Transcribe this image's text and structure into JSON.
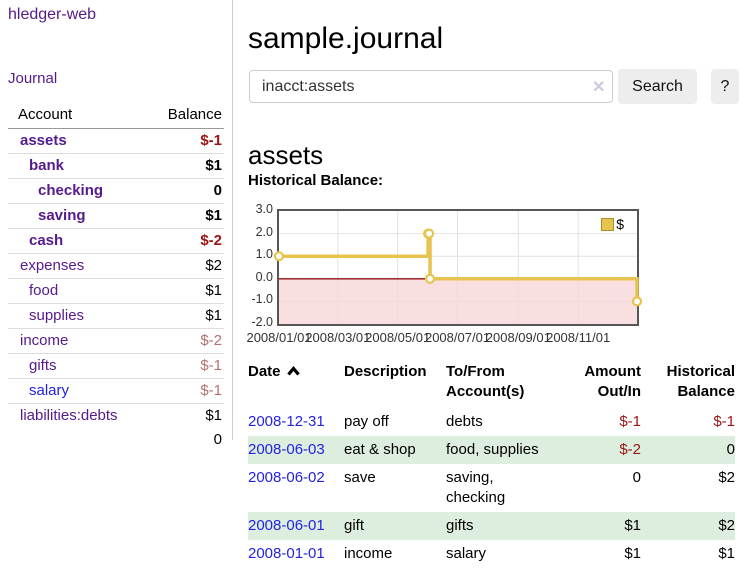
{
  "app": {
    "brand": "hledger-web"
  },
  "sidebar": {
    "journal_link": "Journal",
    "accounts": {
      "col_account": "Account",
      "col_balance": "Balance",
      "rows": [
        {
          "account": "assets",
          "balance": "$-1",
          "level": 0,
          "match": true,
          "link_tone": "visited",
          "balance_tone": "neg"
        },
        {
          "account": "bank",
          "balance": "$1",
          "level": 1,
          "match": true,
          "link_tone": "visited",
          "balance_tone": "pos"
        },
        {
          "account": "checking",
          "balance": "0",
          "level": 2,
          "match": true,
          "link_tone": "visited",
          "balance_tone": "pos"
        },
        {
          "account": "saving",
          "balance": "$1",
          "level": 2,
          "match": true,
          "link_tone": "visited",
          "balance_tone": "pos"
        },
        {
          "account": "cash",
          "balance": "$-2",
          "level": 1,
          "match": true,
          "link_tone": "visited",
          "balance_tone": "neg"
        },
        {
          "account": "expenses",
          "balance": "$2",
          "level": 0,
          "match": false,
          "link_tone": "visited",
          "balance_tone": "pos"
        },
        {
          "account": "food",
          "balance": "$1",
          "level": 1,
          "match": false,
          "link_tone": "visited",
          "balance_tone": "pos"
        },
        {
          "account": "supplies",
          "balance": "$1",
          "level": 1,
          "match": false,
          "link_tone": "visited",
          "balance_tone": "pos"
        },
        {
          "account": "income",
          "balance": "$-2",
          "level": 0,
          "match": false,
          "link_tone": "visited",
          "balance_tone": "neg_muted"
        },
        {
          "account": "gifts",
          "balance": "$-1",
          "level": 1,
          "match": false,
          "link_tone": "visited",
          "balance_tone": "neg_muted"
        },
        {
          "account": "salary",
          "balance": "$-1",
          "level": 1,
          "match": false,
          "link_tone": "unvisited",
          "balance_tone": "neg_muted"
        },
        {
          "account": "liabilities:debts",
          "balance": "$1",
          "level": 0,
          "match": false,
          "link_tone": "visited",
          "balance_tone": "pos"
        }
      ],
      "total": "0"
    }
  },
  "main": {
    "title": "sample.journal",
    "search": {
      "value": "inacct:assets",
      "clear_icon": "✕",
      "search_label": "Search",
      "help_label": "?"
    },
    "heading": "assets"
  },
  "register": {
    "headers": {
      "date": "Date",
      "description": "Description",
      "accounts": "To/From Account(s)",
      "amount": "Amount Out/In",
      "balance": "Historical Balance"
    },
    "rows": [
      {
        "date": "2008-12-31",
        "description": "pay off",
        "accounts": "debts",
        "amount": "$-1",
        "balance": "$-1",
        "amount_tone": "neg",
        "balance_tone": "neg"
      },
      {
        "date": "2008-06-03",
        "description": "eat & shop",
        "accounts": "food, supplies",
        "amount": "$-2",
        "balance": "0",
        "amount_tone": "neg",
        "balance_tone": "pos"
      },
      {
        "date": "2008-06-02",
        "description": "save",
        "accounts": "saving, checking",
        "amount": "0",
        "balance": "$2",
        "amount_tone": "pos",
        "balance_tone": "pos"
      },
      {
        "date": "2008-06-01",
        "description": "gift",
        "accounts": "gifts",
        "amount": "$1",
        "balance": "$2",
        "amount_tone": "pos",
        "balance_tone": "pos"
      },
      {
        "date": "2008-01-01",
        "description": "income",
        "accounts": "salary",
        "amount": "$1",
        "balance": "$1",
        "amount_tone": "pos",
        "balance_tone": "pos"
      }
    ]
  },
  "chart_data": {
    "type": "line",
    "title": "Historical Balance:",
    "step": true,
    "x_range": [
      "2008-01-01",
      "2008-12-31"
    ],
    "ylim": [
      -2,
      3
    ],
    "y_ticks": [
      3,
      2,
      1,
      0,
      -1,
      -2
    ],
    "x_ticks": [
      "2008/01/01",
      "2008/03/01",
      "2008/05/01",
      "2008/07/01",
      "2008/09/01",
      "2008/11/01"
    ],
    "series": [
      {
        "name": "$",
        "color": "#e7c44f",
        "points": [
          [
            "2008-01-01",
            1
          ],
          [
            "2008-06-01",
            2
          ],
          [
            "2008-06-02",
            2
          ],
          [
            "2008-06-03",
            0
          ],
          [
            "2008-12-31",
            -1
          ]
        ]
      }
    ],
    "grid": true,
    "legend_position": "top-right",
    "negative_region_color": "#f8d7d7",
    "zero_line_color": "#8f0f0f"
  },
  "colors": {
    "purple_link": "#551a8b",
    "blue_link": "#2323dd",
    "negative": "#9c1414",
    "negative_muted": "#b47070",
    "row_stripe_green": "#deeede",
    "series_gold": "#e7c44f"
  }
}
